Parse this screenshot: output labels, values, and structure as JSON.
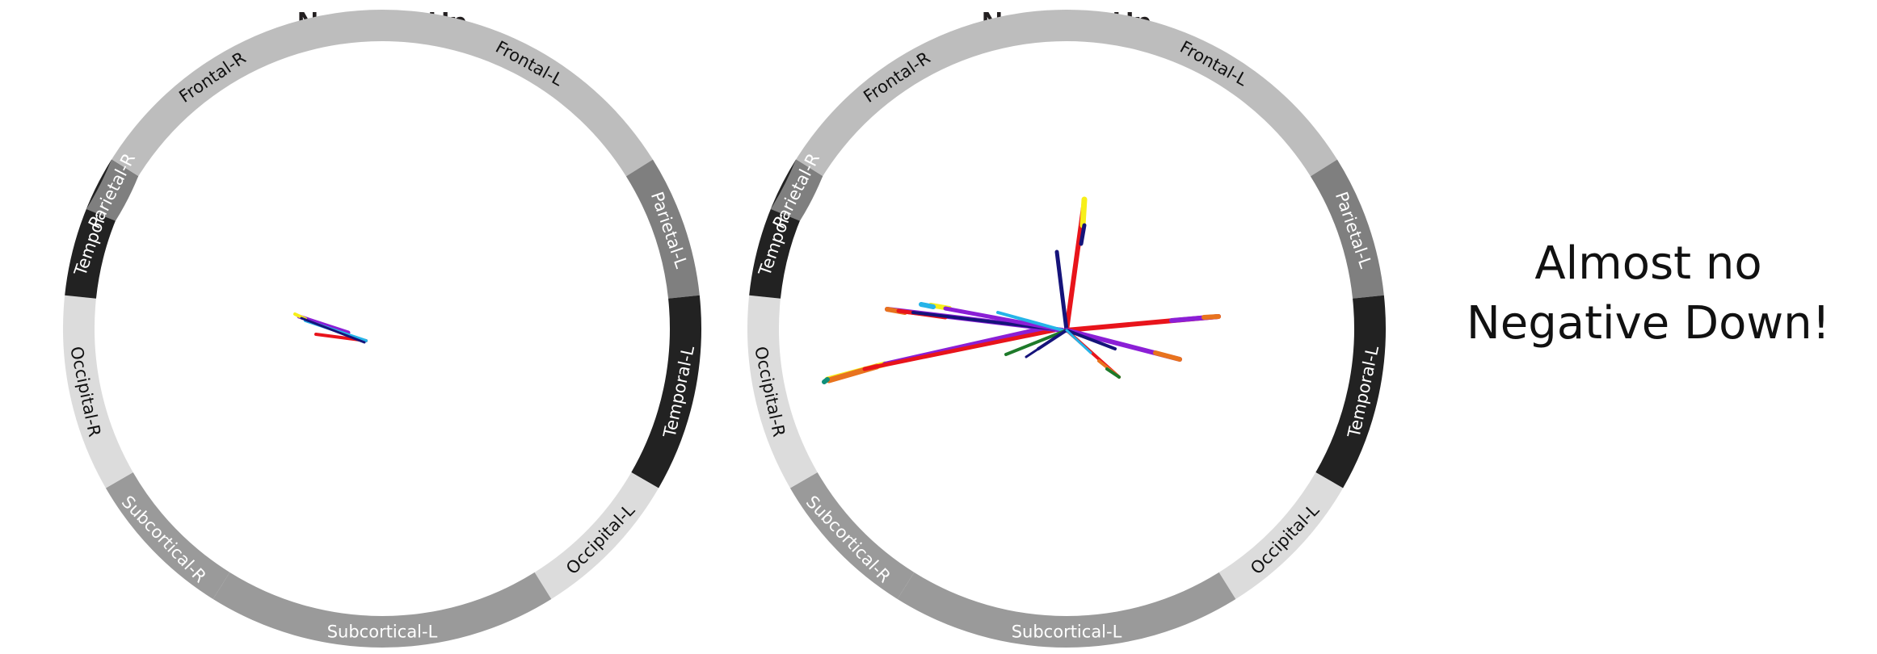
{
  "panels": [
    {
      "title": "Negative-Up",
      "segments": [
        {
          "label": "Frontal-R",
          "shade": "#bdbdbd",
          "text_color": "#111111"
        },
        {
          "label": "Frontal-L",
          "shade": "#bdbdbd",
          "text_color": "#111111"
        },
        {
          "label": "Parietal-L",
          "shade": "#7f7f7f",
          "text_color": "#ffffff"
        },
        {
          "label": "Temporal-L",
          "shade": "#222222",
          "text_color": "#ffffff"
        },
        {
          "label": "Occipital-L",
          "shade": "#dcdcdc",
          "text_color": "#111111"
        },
        {
          "label": "Subcortical-L",
          "shade": "#9a9a9a",
          "text_color": "#ffffff"
        },
        {
          "label": "Subcortical-R",
          "shade": "#9a9a9a",
          "text_color": "#ffffff"
        },
        {
          "label": "Occipital-R",
          "shade": "#dcdcdc",
          "text_color": "#111111"
        },
        {
          "label": "Temporal-R",
          "shade": "#222222",
          "text_color": "#ffffff"
        },
        {
          "label": "Parietal-R",
          "shade": "#7f7f7f",
          "text_color": "#ffffff"
        }
      ]
    },
    {
      "title": "Negative-Up",
      "segments": [
        {
          "label": "Frontal-R",
          "shade": "#bdbdbd",
          "text_color": "#111111"
        },
        {
          "label": "Frontal-L",
          "shade": "#bdbdbd",
          "text_color": "#111111"
        },
        {
          "label": "Parietal-L",
          "shade": "#7f7f7f",
          "text_color": "#ffffff"
        },
        {
          "label": "Temporal-L",
          "shade": "#222222",
          "text_color": "#ffffff"
        },
        {
          "label": "Occipital-L",
          "shade": "#dcdcdc",
          "text_color": "#111111"
        },
        {
          "label": "Subcortical-L",
          "shade": "#9a9a9a",
          "text_color": "#ffffff"
        },
        {
          "label": "Subcortical-R",
          "shade": "#9a9a9a",
          "text_color": "#ffffff"
        },
        {
          "label": "Occipital-R",
          "shade": "#dcdcdc",
          "text_color": "#111111"
        },
        {
          "label": "Temporal-R",
          "shade": "#222222",
          "text_color": "#ffffff"
        },
        {
          "label": "Parietal-R",
          "shade": "#7f7f7f",
          "text_color": "#ffffff"
        }
      ]
    }
  ],
  "note": {
    "line1": "Almost no",
    "line2": "Negative Down!"
  },
  "palette": {
    "red": "#e8141b",
    "purple": "#8b1fd6",
    "navy": "#15137a",
    "yellow": "#f7ef1a",
    "orange": "#e8731e",
    "cyan": "#25b4e8",
    "green": "#1e7a2a",
    "teal": "#0f8f7a"
  }
}
